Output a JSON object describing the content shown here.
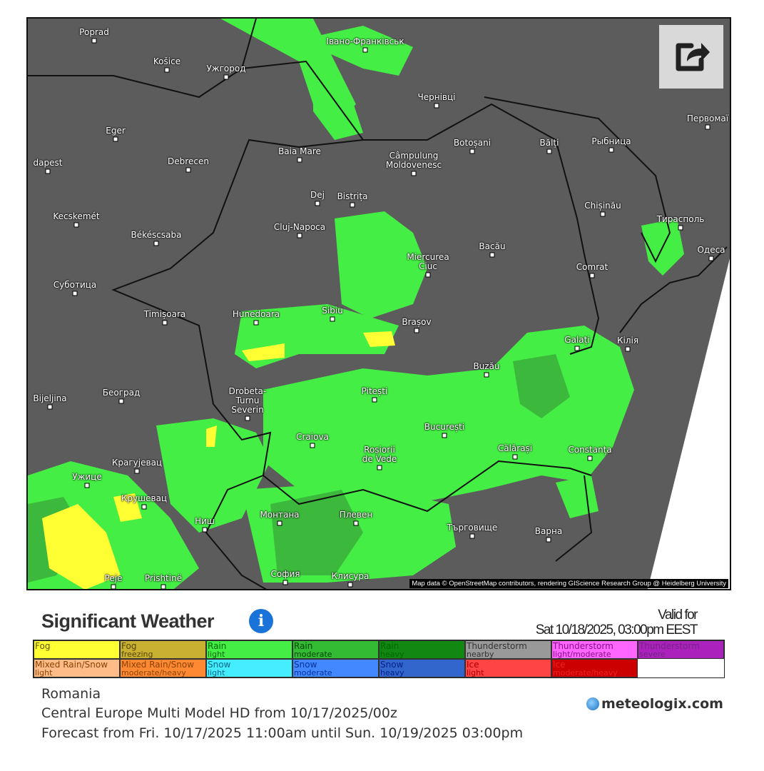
{
  "map": {
    "cities": [
      "Poprad",
      "Košice",
      "Ужгород",
      "Івано-Франківськ",
      "Чернівці",
      "Первомаї",
      "Eger",
      "Debrecen",
      "Baia Mare",
      "Câmpulung\nMoldovenesc",
      "Botoșani",
      "Bălți",
      "Рыбница",
      "dapest",
      "Dej",
      "Bistrița",
      "Chișinău",
      "Тирасполь",
      "Kecskemét",
      "Békéscsaba",
      "Cluj-Napoca",
      "Miercurea\nCiuc",
      "Bacău",
      "Одеса",
      "Comrat",
      "Суботица",
      "Timișoara",
      "Hunedoara",
      "Sibiu",
      "Brașov",
      "Galați",
      "Кілія",
      "Buzău",
      "Bijeljina",
      "Београд",
      "Drobeta-\nTurnu\nSeverin",
      "Pitești",
      "București",
      "Craiova",
      "Roșiorii\nde Vede",
      "Călărași",
      "Constanța",
      "Крагујевац",
      "Ужице",
      "Крушевац",
      "Ниш",
      "Монтана",
      "Плевен",
      "Търговище",
      "Варна",
      "София",
      "Клисура",
      "Peje",
      "Prishtinë"
    ],
    "attribution": "Map data © OpenStreetMap contributors, rendering GIScience Research Group @ Heidelberg University",
    "share_icon": "share-icon",
    "background_color": "#5c5c5c",
    "rain_light_color": "#44ee44",
    "rain_moderate_color": "#3cb83c"
  },
  "header": {
    "title": "Significant Weather",
    "info_icon": "i",
    "valid_label": "Valid for",
    "valid_time": "Sat 10/18/2025, 03:00pm EEST"
  },
  "legend": [
    {
      "main": "Fog",
      "sub": "",
      "bg": "#ffff33",
      "fg": "#665500"
    },
    {
      "main": "Fog",
      "sub": "freezing",
      "bg": "#c8b030",
      "fg": "#554400"
    },
    {
      "main": "Rain",
      "sub": "light",
      "bg": "#44ee44",
      "fg": "#006600"
    },
    {
      "main": "Rain",
      "sub": "moderate",
      "bg": "#33bb33",
      "fg": "#004400"
    },
    {
      "main": "Rain",
      "sub": "heavy",
      "bg": "#118811",
      "fg": "#006600"
    },
    {
      "main": "Thunderstorm",
      "sub": "nearby",
      "bg": "#999999",
      "fg": "#333333"
    },
    {
      "main": "Thunderstorm",
      "sub": "light/moderate",
      "bg": "#ff66ff",
      "fg": "#881188"
    },
    {
      "main": "Thunderstorm",
      "sub": "severe",
      "bg": "#aa22bb",
      "fg": "#772288"
    },
    {
      "main": "Mixed Rain/Snow",
      "sub": "light",
      "bg": "#ffbb88",
      "fg": "#884400"
    },
    {
      "main": "Mixed Rain/Snow",
      "sub": "moderate/heavy",
      "bg": "#ff8833",
      "fg": "#884400"
    },
    {
      "main": "Snow",
      "sub": "light",
      "bg": "#44eeff",
      "fg": "#006688"
    },
    {
      "main": "Snow",
      "sub": "moderate",
      "bg": "#4488ff",
      "fg": "#003399"
    },
    {
      "main": "Snow",
      "sub": "heavy",
      "bg": "#3366cc",
      "fg": "#002288"
    },
    {
      "main": "Ice",
      "sub": "light",
      "bg": "#ff4444",
      "fg": "#aa0000"
    },
    {
      "main": "Ice",
      "sub": "moderate/heavy",
      "bg": "#cc0000",
      "fg": "#ee2222"
    }
  ],
  "footer": {
    "region": "Romania",
    "model": "Central Europe Multi Model HD from 10/17/2025/00z",
    "forecast": "Forecast from Fri. 10/17/2025 11:00am until Sun. 10/19/2025 03:00pm",
    "logo": "meteologix.com"
  }
}
